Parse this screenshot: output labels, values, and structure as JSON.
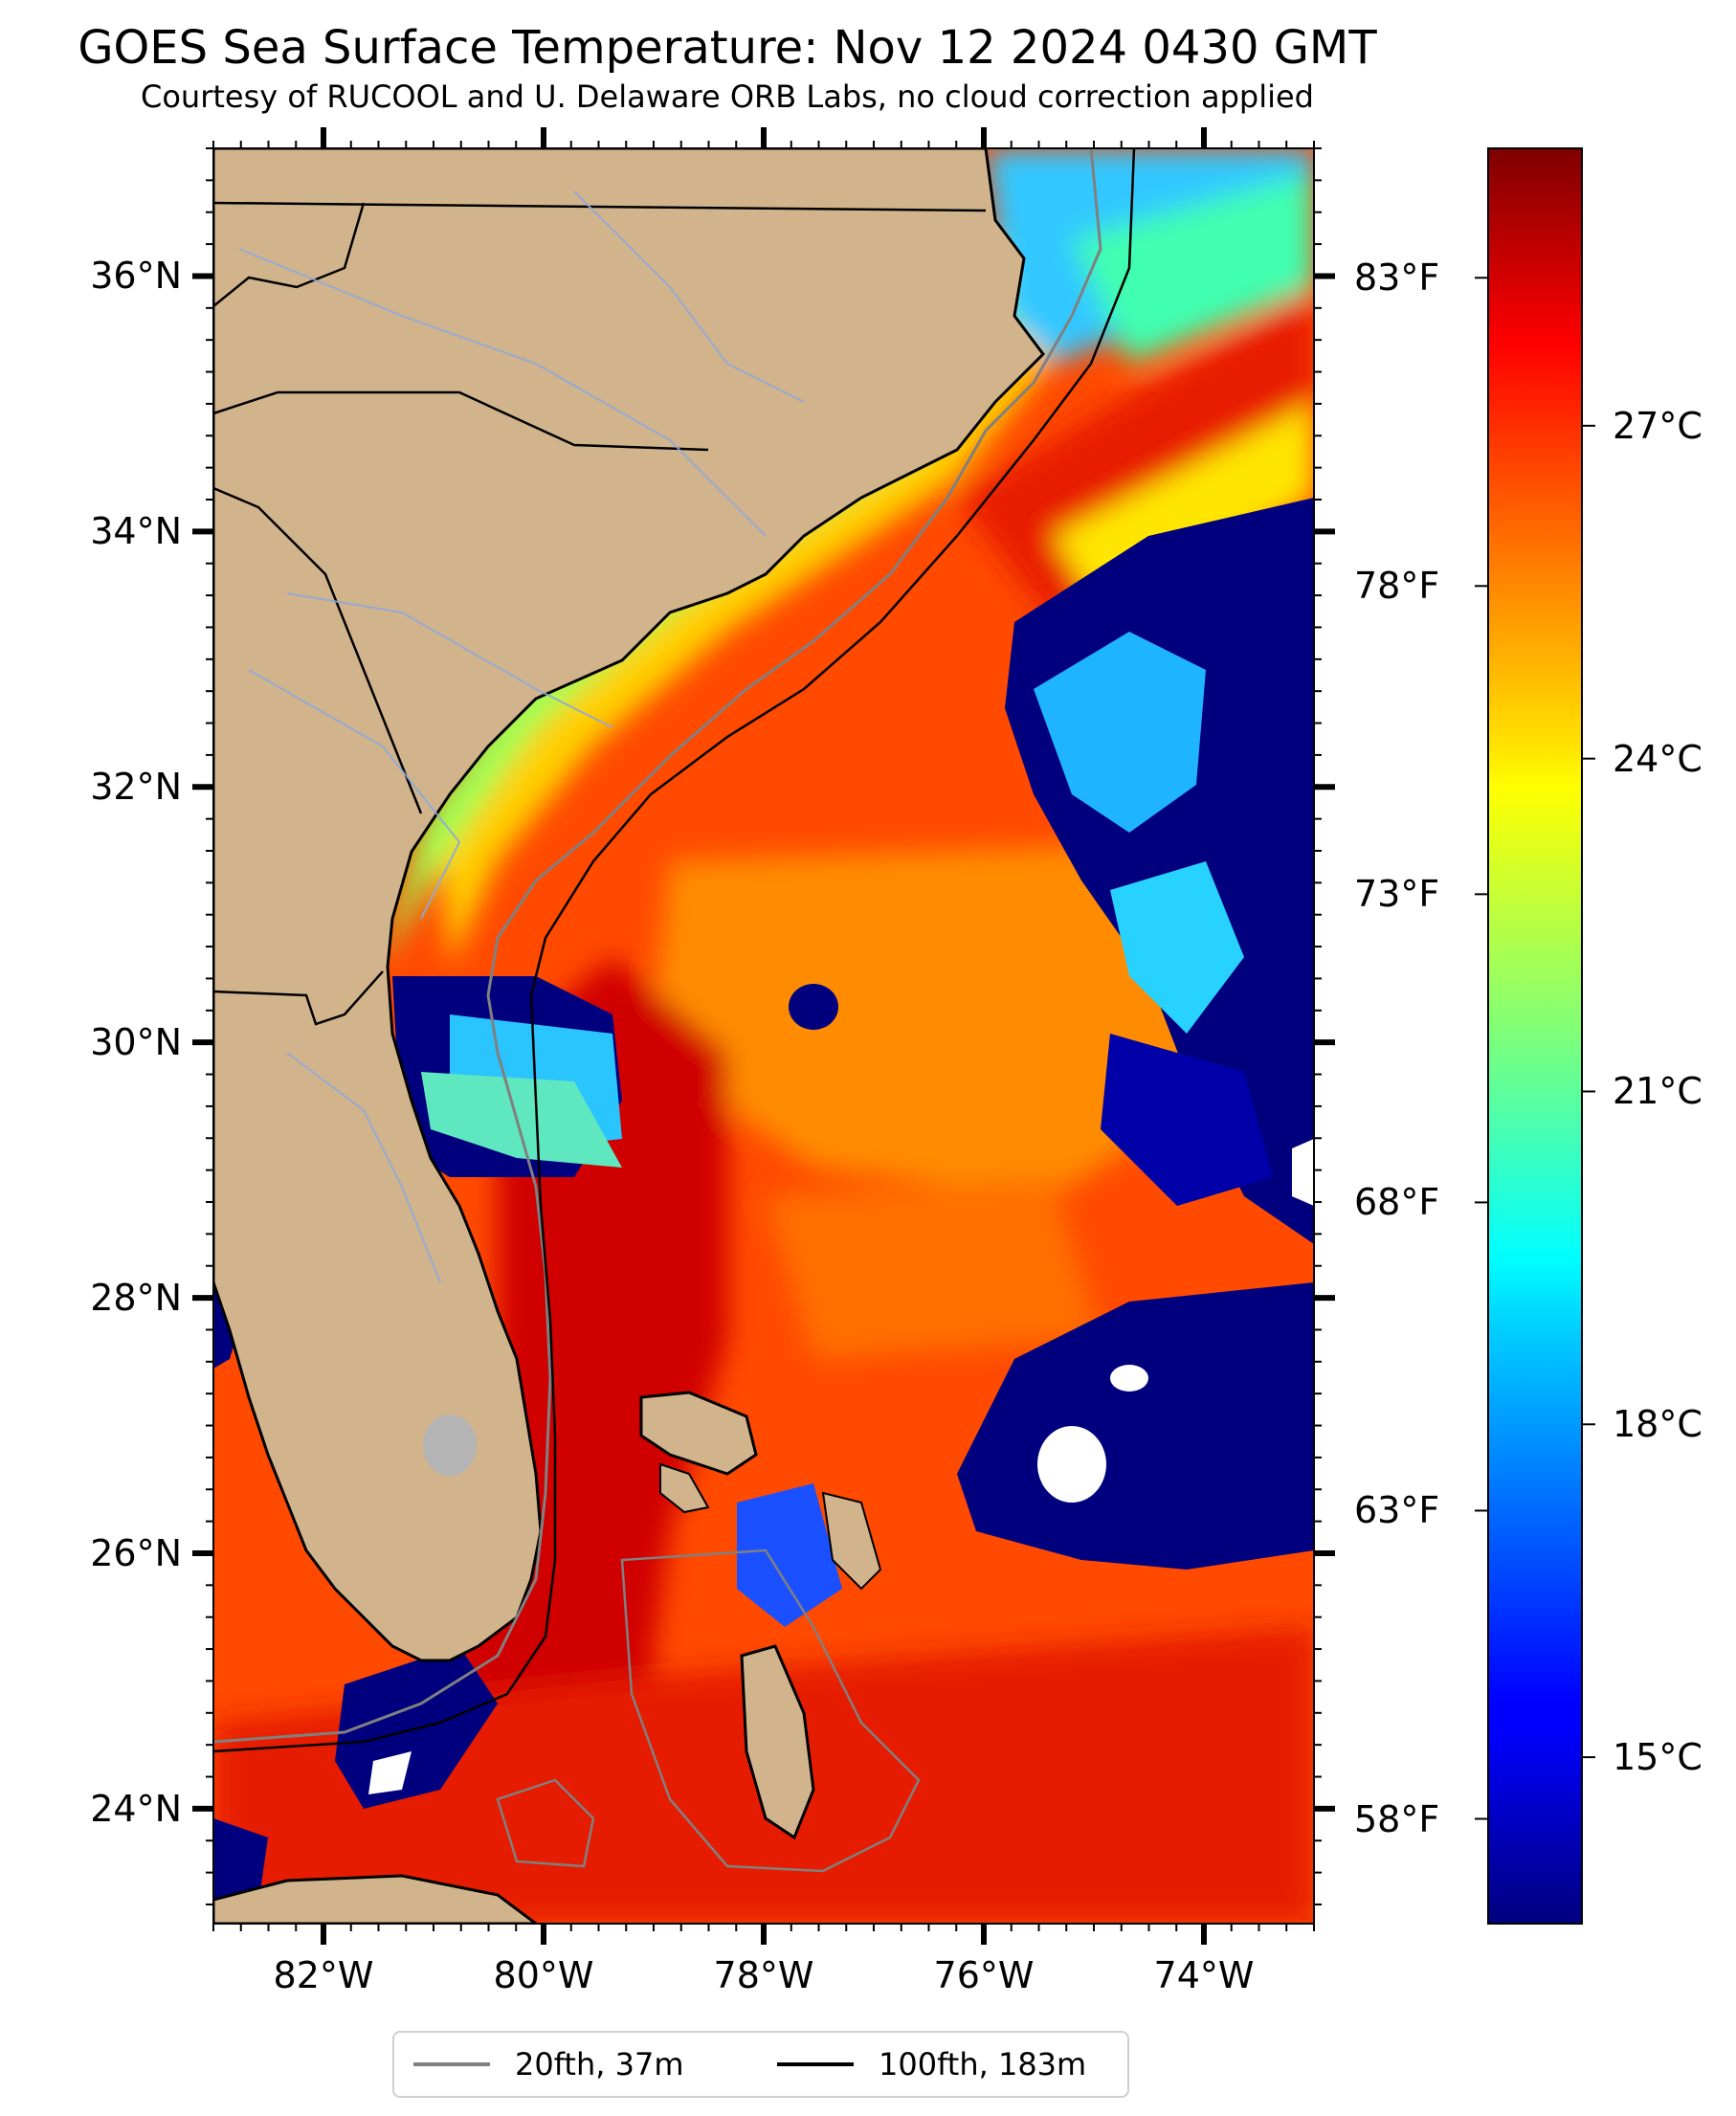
{
  "header": {
    "title": "GOES Sea Surface Temperature: Nov 12 2024 0430 GMT",
    "subtitle": "Courtesy of RUCOOL and U. Delaware ORB Labs, no cloud correction applied"
  },
  "map": {
    "lon_range": [
      -83,
      -73
    ],
    "lat_range": [
      23.1,
      37.0
    ],
    "land_color": "#d2b48c",
    "cloud_color": "#ffffff",
    "lat_ticks": [
      {
        "value": 24,
        "label": "24°N"
      },
      {
        "value": 26,
        "label": "26°N"
      },
      {
        "value": 28,
        "label": "28°N"
      },
      {
        "value": 30,
        "label": "30°N"
      },
      {
        "value": 32,
        "label": "32°N"
      },
      {
        "value": 34,
        "label": "34°N"
      },
      {
        "value": 36,
        "label": "36°N"
      }
    ],
    "lon_ticks": [
      {
        "value": -82,
        "label": "82°W"
      },
      {
        "value": -80,
        "label": "80°W"
      },
      {
        "value": -78,
        "label": "78°W"
      },
      {
        "value": -76,
        "label": "76°W"
      },
      {
        "value": -74,
        "label": "74°W"
      }
    ]
  },
  "colorbar": {
    "colormap": "jet",
    "celsius_range": [
      13.5,
      29.5
    ],
    "celsius_ticks": [
      {
        "value": 15,
        "label": "15°C"
      },
      {
        "value": 18,
        "label": "18°C"
      },
      {
        "value": 21,
        "label": "21°C"
      },
      {
        "value": 24,
        "label": "24°C"
      },
      {
        "value": 27,
        "label": "27°C"
      }
    ],
    "fahrenheit_ticks": [
      {
        "value": 58,
        "label": "58°F"
      },
      {
        "value": 63,
        "label": "63°F"
      },
      {
        "value": 68,
        "label": "68°F"
      },
      {
        "value": 73,
        "label": "73°F"
      },
      {
        "value": 78,
        "label": "78°F"
      },
      {
        "value": 83,
        "label": "83°F"
      }
    ]
  },
  "legend": {
    "items": [
      {
        "label": "20fth, 37m",
        "color": "#808080"
      },
      {
        "label": "100fth, 183m",
        "color": "#000000"
      }
    ]
  }
}
